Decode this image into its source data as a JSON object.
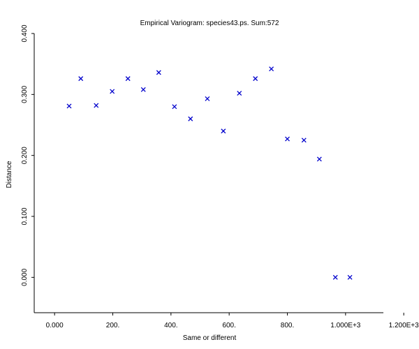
{
  "chart_data": {
    "type": "scatter",
    "title": "Empirical Variogram: species43.ps. Sum:572",
    "xlabel": "Same or different",
    "ylabel": "Distance",
    "xlim": [
      -70,
      1130
    ],
    "ylim": [
      -0.058,
      0.4
    ],
    "x_ticks": [
      {
        "value": 0,
        "label": "0.000"
      },
      {
        "value": 200,
        "label": "200."
      },
      {
        "value": 400,
        "label": "400."
      },
      {
        "value": 600,
        "label": "600."
      },
      {
        "value": 800,
        "label": "800."
      },
      {
        "value": 1000,
        "label": "1.000E+3"
      },
      {
        "value": 1200,
        "label": "1.200E+3"
      }
    ],
    "y_ticks": [
      {
        "value": 0.0,
        "label": "0.000"
      },
      {
        "value": 0.1,
        "label": "0.100"
      },
      {
        "value": 0.2,
        "label": "0.200"
      },
      {
        "value": 0.3,
        "label": "0.300"
      },
      {
        "value": 0.4,
        "label": "0.400"
      }
    ],
    "grid": false,
    "marker": "x",
    "marker_color": "#0000cc",
    "points": [
      {
        "x": 50,
        "y": 0.281
      },
      {
        "x": 90,
        "y": 0.326
      },
      {
        "x": 143,
        "y": 0.282
      },
      {
        "x": 198,
        "y": 0.305
      },
      {
        "x": 252,
        "y": 0.326
      },
      {
        "x": 305,
        "y": 0.308
      },
      {
        "x": 358,
        "y": 0.336
      },
      {
        "x": 412,
        "y": 0.28
      },
      {
        "x": 467,
        "y": 0.26
      },
      {
        "x": 525,
        "y": 0.293
      },
      {
        "x": 580,
        "y": 0.24
      },
      {
        "x": 635,
        "y": 0.302
      },
      {
        "x": 690,
        "y": 0.326
      },
      {
        "x": 745,
        "y": 0.342
      },
      {
        "x": 800,
        "y": 0.227
      },
      {
        "x": 857,
        "y": 0.225
      },
      {
        "x": 910,
        "y": 0.194
      },
      {
        "x": 965,
        "y": 0.0
      },
      {
        "x": 1015,
        "y": 0.0
      }
    ]
  }
}
